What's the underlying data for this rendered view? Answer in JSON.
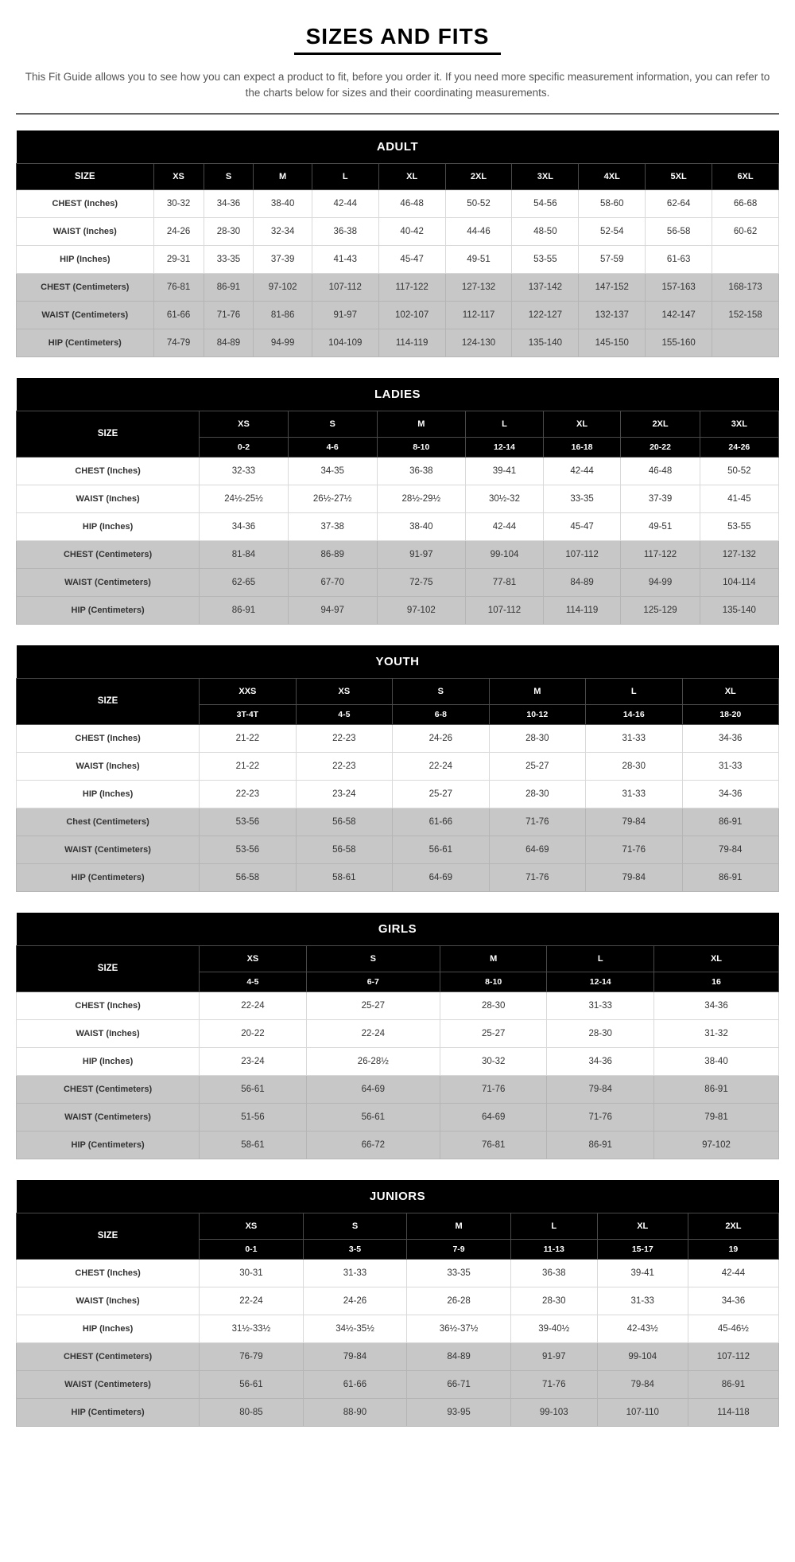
{
  "title": "SIZES AND FITS",
  "intro": "This Fit Guide allows you to see how you can expect a product to fit, before you order it. If you need more specific measurement information, you can refer to the charts below for sizes and their coordinating measurements.",
  "tables": [
    {
      "title": "ADULT",
      "sizeLabel": "SIZE",
      "sizes": [
        "XS",
        "S",
        "M",
        "L",
        "XL",
        "2XL",
        "3XL",
        "4XL",
        "5XL",
        "6XL"
      ],
      "subsizes": null,
      "rows": [
        {
          "unit": "inches",
          "label": "CHEST (Inches)",
          "vals": [
            "30-32",
            "34-36",
            "38-40",
            "42-44",
            "46-48",
            "50-52",
            "54-56",
            "58-60",
            "62-64",
            "66-68"
          ]
        },
        {
          "unit": "inches",
          "label": "WAIST (Inches)",
          "vals": [
            "24-26",
            "28-30",
            "32-34",
            "36-38",
            "40-42",
            "44-46",
            "48-50",
            "52-54",
            "56-58",
            "60-62"
          ]
        },
        {
          "unit": "inches",
          "label": "HIP (Inches)",
          "vals": [
            "29-31",
            "33-35",
            "37-39",
            "41-43",
            "45-47",
            "49-51",
            "53-55",
            "57-59",
            "61-63",
            ""
          ]
        },
        {
          "unit": "cm",
          "label": "CHEST (Centimeters)",
          "vals": [
            "76-81",
            "86-91",
            "97-102",
            "107-112",
            "117-122",
            "127-132",
            "137-142",
            "147-152",
            "157-163",
            "168-173"
          ]
        },
        {
          "unit": "cm",
          "label": "WAIST (Centimeters)",
          "vals": [
            "61-66",
            "71-76",
            "81-86",
            "91-97",
            "102-107",
            "112-117",
            "122-127",
            "132-137",
            "142-147",
            "152-158"
          ]
        },
        {
          "unit": "cm",
          "label": "HIP (Centimeters)",
          "vals": [
            "74-79",
            "84-89",
            "94-99",
            "104-109",
            "114-119",
            "124-130",
            "135-140",
            "145-150",
            "155-160",
            ""
          ]
        }
      ]
    },
    {
      "title": "LADIES",
      "sizeLabel": "SIZE",
      "sizes": [
        "XS",
        "S",
        "M",
        "L",
        "XL",
        "2XL",
        "3XL"
      ],
      "subsizes": [
        "0-2",
        "4-6",
        "8-10",
        "12-14",
        "16-18",
        "20-22",
        "24-26"
      ],
      "rows": [
        {
          "unit": "inches",
          "label": "CHEST (Inches)",
          "vals": [
            "32-33",
            "34-35",
            "36-38",
            "39-41",
            "42-44",
            "46-48",
            "50-52"
          ]
        },
        {
          "unit": "inches",
          "label": "WAIST (Inches)",
          "vals": [
            "24½-25½",
            "26½-27½",
            "28½-29½",
            "30½-32",
            "33-35",
            "37-39",
            "41-45"
          ]
        },
        {
          "unit": "inches",
          "label": "HIP (Inches)",
          "vals": [
            "34-36",
            "37-38",
            "38-40",
            "42-44",
            "45-47",
            "49-51",
            "53-55"
          ]
        },
        {
          "unit": "cm",
          "label": "CHEST (Centimeters)",
          "vals": [
            "81-84",
            "86-89",
            "91-97",
            "99-104",
            "107-112",
            "117-122",
            "127-132"
          ]
        },
        {
          "unit": "cm",
          "label": "WAIST (Centimeters)",
          "vals": [
            "62-65",
            "67-70",
            "72-75",
            "77-81",
            "84-89",
            "94-99",
            "104-114"
          ]
        },
        {
          "unit": "cm",
          "label": "HIP (Centimeters)",
          "vals": [
            "86-91",
            "94-97",
            "97-102",
            "107-112",
            "114-119",
            "125-129",
            "135-140"
          ]
        }
      ]
    },
    {
      "title": "YOUTH",
      "sizeLabel": "SIZE",
      "sizes": [
        "XXS",
        "XS",
        "S",
        "M",
        "L",
        "XL"
      ],
      "subsizes": [
        "3T-4T",
        "4-5",
        "6-8",
        "10-12",
        "14-16",
        "18-20"
      ],
      "rows": [
        {
          "unit": "inches",
          "label": "CHEST (Inches)",
          "vals": [
            "21-22",
            "22-23",
            "24-26",
            "28-30",
            "31-33",
            "34-36"
          ]
        },
        {
          "unit": "inches",
          "label": "WAIST (Inches)",
          "vals": [
            "21-22",
            "22-23",
            "22-24",
            "25-27",
            "28-30",
            "31-33"
          ]
        },
        {
          "unit": "inches",
          "label": "HIP (Inches)",
          "vals": [
            "22-23",
            "23-24",
            "25-27",
            "28-30",
            "31-33",
            "34-36"
          ]
        },
        {
          "unit": "cm",
          "label": "Chest (Centimeters)",
          "vals": [
            "53-56",
            "56-58",
            "61-66",
            "71-76",
            "79-84",
            "86-91"
          ]
        },
        {
          "unit": "cm",
          "label": "WAIST (Centimeters)",
          "vals": [
            "53-56",
            "56-58",
            "56-61",
            "64-69",
            "71-76",
            "79-84"
          ]
        },
        {
          "unit": "cm",
          "label": "HIP (Centimeters)",
          "vals": [
            "56-58",
            "58-61",
            "64-69",
            "71-76",
            "79-84",
            "86-91"
          ]
        }
      ]
    },
    {
      "title": "GIRLS",
      "sizeLabel": "SIZE",
      "sizes": [
        "XS",
        "S",
        "M",
        "L",
        "XL"
      ],
      "subsizes": [
        "4-5",
        "6-7",
        "8-10",
        "12-14",
        "16"
      ],
      "rows": [
        {
          "unit": "inches",
          "label": "CHEST (Inches)",
          "vals": [
            "22-24",
            "25-27",
            "28-30",
            "31-33",
            "34-36"
          ]
        },
        {
          "unit": "inches",
          "label": "WAIST (Inches)",
          "vals": [
            "20-22",
            "22-24",
            "25-27",
            "28-30",
            "31-32"
          ]
        },
        {
          "unit": "inches",
          "label": "HIP (Inches)",
          "vals": [
            "23-24",
            "26-28½",
            "30-32",
            "34-36",
            "38-40"
          ]
        },
        {
          "unit": "cm",
          "label": "CHEST (Centimeters)",
          "vals": [
            "56-61",
            "64-69",
            "71-76",
            "79-84",
            "86-91"
          ]
        },
        {
          "unit": "cm",
          "label": "WAIST (Centimeters)",
          "vals": [
            "51-56",
            "56-61",
            "64-69",
            "71-76",
            "79-81"
          ]
        },
        {
          "unit": "cm",
          "label": "HIP (Centimeters)",
          "vals": [
            "58-61",
            "66-72",
            "76-81",
            "86-91",
            "97-102"
          ]
        }
      ]
    },
    {
      "title": "JUNIORS",
      "sizeLabel": "SIZE",
      "sizes": [
        "XS",
        "S",
        "M",
        "L",
        "XL",
        "2XL"
      ],
      "subsizes": [
        "0-1",
        "3-5",
        "7-9",
        "11-13",
        "15-17",
        "19"
      ],
      "rows": [
        {
          "unit": "inches",
          "label": "CHEST (Inches)",
          "vals": [
            "30-31",
            "31-33",
            "33-35",
            "36-38",
            "39-41",
            "42-44"
          ]
        },
        {
          "unit": "inches",
          "label": "WAIST (Inches)",
          "vals": [
            "22-24",
            "24-26",
            "26-28",
            "28-30",
            "31-33",
            "34-36"
          ]
        },
        {
          "unit": "inches",
          "label": "HIP (Inches)",
          "vals": [
            "31½-33½",
            "34½-35½",
            "36½-37½",
            "39-40½",
            "42-43½",
            "45-46½"
          ]
        },
        {
          "unit": "cm",
          "label": "CHEST (Centimeters)",
          "vals": [
            "76-79",
            "79-84",
            "84-89",
            "91-97",
            "99-104",
            "107-112"
          ]
        },
        {
          "unit": "cm",
          "label": "WAIST (Centimeters)",
          "vals": [
            "56-61",
            "61-66",
            "66-71",
            "71-76",
            "79-84",
            "86-91"
          ]
        },
        {
          "unit": "cm",
          "label": "HIP (Centimeters)",
          "vals": [
            "80-85",
            "88-90",
            "93-95",
            "99-103",
            "107-110",
            "114-118"
          ]
        }
      ]
    }
  ]
}
